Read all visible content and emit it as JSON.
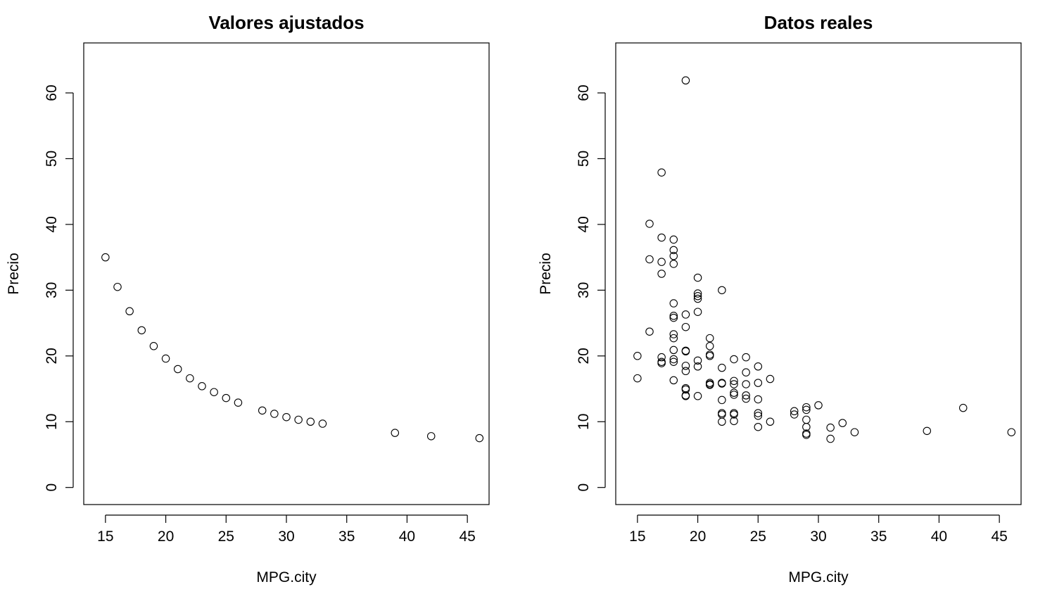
{
  "chart_data": [
    {
      "type": "scatter",
      "title": "Valores ajustados",
      "xlabel": "MPG.city",
      "ylabel": "Precio",
      "xlim": [
        13.2,
        46.8
      ],
      "ylim": [
        -2.6,
        67.6
      ],
      "x_ticks": [
        15,
        20,
        25,
        30,
        35,
        40,
        45
      ],
      "y_ticks": [
        0,
        10,
        20,
        30,
        40,
        50,
        60
      ],
      "grid": false,
      "legend": "none",
      "x": [
        15,
        16,
        17,
        18,
        19,
        20,
        21,
        22,
        23,
        24,
        25,
        26,
        28,
        29,
        30,
        31,
        32,
        33,
        39,
        42,
        46
      ],
      "y": [
        35.0,
        30.5,
        26.8,
        23.9,
        21.5,
        19.6,
        18.0,
        16.6,
        15.4,
        14.5,
        13.6,
        12.9,
        11.7,
        11.2,
        10.7,
        10.3,
        10.0,
        9.7,
        8.3,
        7.8,
        7.5
      ]
    },
    {
      "type": "scatter",
      "title": "Datos reales",
      "xlabel": "MPG.city",
      "ylabel": "Precio",
      "xlim": [
        13.2,
        46.8
      ],
      "ylim": [
        -2.6,
        67.6
      ],
      "x_ticks": [
        15,
        20,
        25,
        30,
        35,
        40,
        45
      ],
      "y_ticks": [
        0,
        10,
        20,
        30,
        40,
        50,
        60
      ],
      "grid": false,
      "legend": "none",
      "x": [
        15,
        15,
        16,
        16,
        16,
        17,
        17,
        17,
        17,
        17,
        17,
        17,
        18,
        18,
        18,
        18,
        18,
        18,
        18,
        18,
        18,
        18,
        18,
        18,
        18,
        19,
        19,
        19,
        19,
        19,
        19,
        19,
        19,
        19,
        19,
        19,
        20,
        20,
        20,
        20,
        20,
        20,
        20,
        20,
        21,
        21,
        21,
        21,
        21,
        21,
        21,
        22,
        22,
        22,
        22,
        22,
        22,
        22,
        22,
        23,
        23,
        23,
        23,
        23,
        23,
        23,
        23,
        24,
        24,
        24,
        24,
        24,
        25,
        25,
        25,
        25,
        25,
        25,
        26,
        26,
        28,
        28,
        29,
        29,
        29,
        29,
        29,
        29,
        30,
        31,
        31,
        32,
        33,
        39,
        42,
        46
      ],
      "y": [
        20.0,
        16.6,
        40.1,
        34.7,
        23.7,
        47.9,
        38.0,
        34.3,
        32.5,
        19.8,
        19.1,
        18.9,
        36.1,
        35.2,
        34.0,
        28.0,
        26.1,
        25.8,
        23.3,
        22.7,
        20.9,
        19.5,
        19.1,
        16.3,
        37.7,
        61.9,
        26.3,
        24.4,
        20.8,
        20.7,
        18.5,
        17.7,
        15.1,
        14.9,
        14.0,
        13.9,
        31.9,
        29.5,
        29.1,
        28.7,
        26.7,
        19.3,
        18.4,
        13.9,
        22.7,
        21.5,
        20.2,
        20.0,
        15.9,
        15.6,
        15.7,
        30.0,
        18.2,
        15.9,
        15.8,
        13.3,
        11.3,
        10.0,
        11.1,
        19.5,
        16.2,
        15.7,
        14.4,
        14.1,
        11.3,
        11.1,
        10.1,
        19.8,
        17.5,
        15.7,
        14.0,
        13.5,
        18.4,
        15.9,
        13.4,
        11.3,
        10.9,
        9.2,
        16.5,
        10.0,
        11.6,
        11.1,
        12.2,
        11.8,
        10.3,
        9.2,
        8.2,
        8.0,
        12.5,
        9.1,
        7.4,
        9.8,
        8.4,
        8.6,
        12.1,
        8.4
      ]
    }
  ]
}
